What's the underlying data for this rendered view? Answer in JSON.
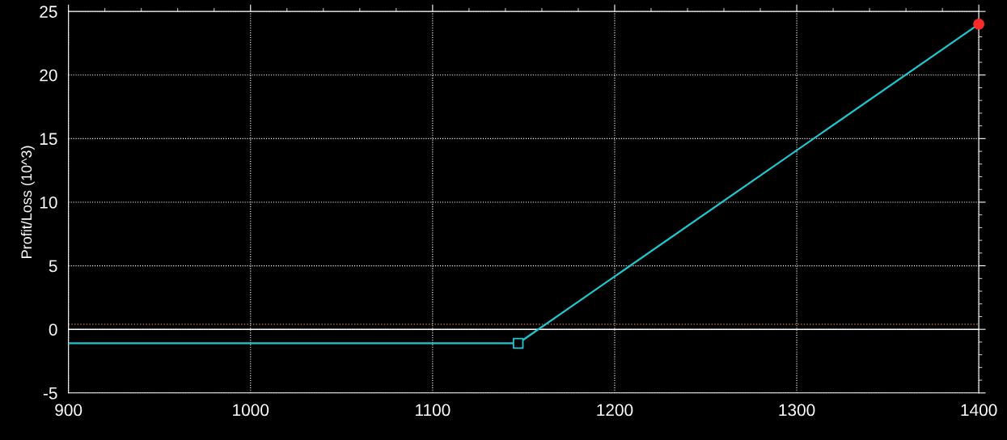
{
  "chart_data": {
    "type": "line",
    "ylabel": "Profit/Loss (10^3)",
    "xlim": [
      900,
      1400
    ],
    "xticks": [
      900,
      1000,
      1100,
      1200,
      1300,
      1400
    ],
    "ylim": [
      -5,
      25
    ],
    "yticks": [
      -5,
      0,
      5,
      10,
      15,
      20,
      25
    ],
    "grid": true,
    "marker": "none",
    "line_style": "solid",
    "series": [
      {
        "color": "#1ec8d0",
        "x": [
          900,
          1147,
          1400
        ],
        "values": [
          -1.1,
          -1.1,
          24
        ]
      },
      {
        "type": "scatter",
        "marker": "square",
        "color": "#1ec8d0",
        "x": [
          1147
        ],
        "values": [
          -1.1
        ]
      },
      {
        "type": "scatter",
        "marker": "circle",
        "color": "#ff2a2a",
        "x": [
          1400
        ],
        "values": [
          24
        ]
      }
    ],
    "ref_lines": [
      {
        "axis": "y",
        "value": 0,
        "color": "#ffffff",
        "line_style": "solid"
      },
      {
        "axis": "y",
        "value": 0.4,
        "color": "#c8883c",
        "line_style": "dotted"
      }
    ]
  }
}
